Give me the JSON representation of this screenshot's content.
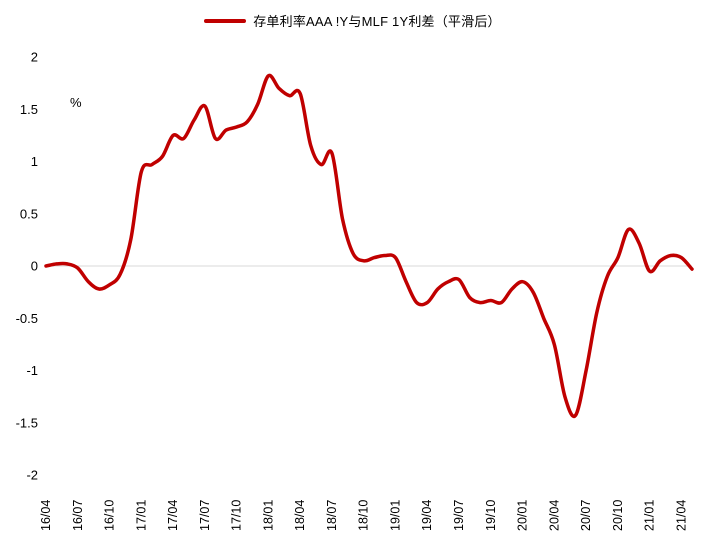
{
  "colors": {
    "line": "#c00000",
    "axis": "#d9d9d9",
    "text": "#000000"
  },
  "chart_data": {
    "type": "line",
    "title": "存单利率AAA !Y与MLF 1Y利差（平滑后）",
    "ylabel": "%",
    "xlabel": "",
    "legend_position": "top",
    "grid": false,
    "zero_line": true,
    "ylim": [
      -2,
      2
    ],
    "y_ticks": [
      2,
      1.5,
      1,
      0.5,
      0,
      -0.5,
      -1,
      -1.5,
      -2
    ],
    "x_tick_every": 3,
    "x": [
      "16/04",
      "16/05",
      "16/06",
      "16/07",
      "16/08",
      "16/09",
      "16/10",
      "16/11",
      "16/12",
      "17/01",
      "17/02",
      "17/03",
      "17/04",
      "17/05",
      "17/06",
      "17/07",
      "17/08",
      "17/09",
      "17/10",
      "17/11",
      "17/12",
      "18/01",
      "18/02",
      "18/03",
      "18/04",
      "18/05",
      "18/06",
      "18/07",
      "18/08",
      "18/09",
      "18/10",
      "18/11",
      "18/12",
      "19/01",
      "19/02",
      "19/03",
      "19/04",
      "19/05",
      "19/06",
      "19/07",
      "19/08",
      "19/09",
      "19/10",
      "19/11",
      "19/12",
      "20/01",
      "20/02",
      "20/03",
      "20/04",
      "20/05",
      "20/06",
      "20/07",
      "20/08",
      "20/09",
      "20/10",
      "20/11",
      "20/12",
      "21/01",
      "21/02",
      "21/03",
      "21/04",
      "21/05"
    ],
    "values": [
      0.0,
      0.02,
      0.02,
      -0.02,
      -0.15,
      -0.22,
      -0.18,
      -0.08,
      0.25,
      0.9,
      0.97,
      1.05,
      1.25,
      1.22,
      1.4,
      1.53,
      1.22,
      1.3,
      1.33,
      1.38,
      1.55,
      1.82,
      1.7,
      1.63,
      1.65,
      1.15,
      0.97,
      1.08,
      0.45,
      0.12,
      0.05,
      0.08,
      0.1,
      0.08,
      -0.15,
      -0.35,
      -0.35,
      -0.22,
      -0.15,
      -0.13,
      -0.3,
      -0.35,
      -0.33,
      -0.35,
      -0.22,
      -0.15,
      -0.25,
      -0.5,
      -0.75,
      -1.25,
      -1.43,
      -1.0,
      -0.45,
      -0.1,
      0.08,
      0.35,
      0.22,
      -0.05,
      0.05,
      0.1,
      0.08,
      -0.03
    ]
  }
}
